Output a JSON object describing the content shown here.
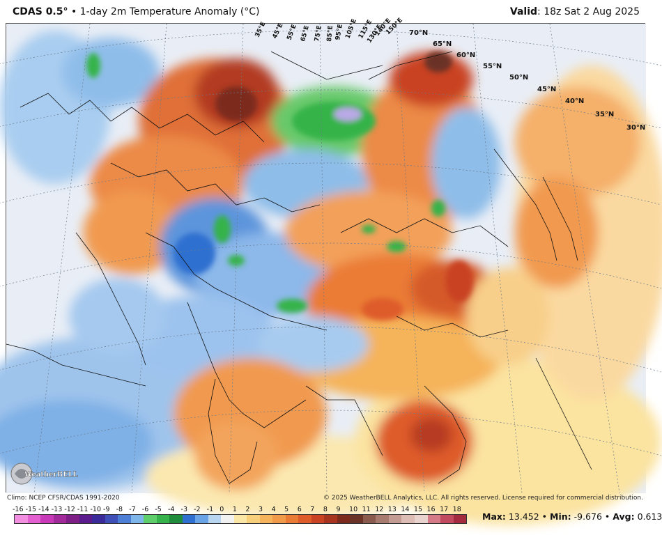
{
  "header": {
    "model": "CDAS 0.5°",
    "bullet": "•",
    "product": "1-day 2m Temperature Anomaly (°C)",
    "valid_label": "Valid",
    "valid_time": "18z Sat 2 Aug 2025"
  },
  "map": {
    "lat_labels": [
      "70°N",
      "65°N",
      "60°N",
      "55°N",
      "50°N",
      "45°N",
      "40°N",
      "35°N",
      "30°N"
    ],
    "lon_labels": [
      "35°E",
      "45°E",
      "55°E",
      "65°E",
      "75°E",
      "85°E",
      "95°E",
      "105°E",
      "115°E",
      "130°E",
      "140°E",
      "150°E"
    ],
    "logo_text": "WeatherBELL"
  },
  "footer": {
    "climo": "Climo: NCEP CFSR/CDAS 1991-2020",
    "copyright": "© 2025 WeatherBELL Analytics, LLC. All rights reserved. License required for commercial distribution."
  },
  "colorbar": {
    "labels": [
      "-16",
      "-15",
      "-14",
      "-13",
      "-12",
      "-11",
      "-10",
      "-9",
      "-8",
      "-7",
      "-6",
      "-5",
      "-4",
      "-3",
      "-2",
      "-1",
      "0",
      "1",
      "2",
      "3",
      "4",
      "5",
      "6",
      "7",
      "8",
      "9",
      "10",
      "11",
      "12",
      "13",
      "14",
      "15",
      "16",
      "17",
      "18"
    ],
    "colors": [
      "#f28fe0",
      "#e45fcf",
      "#c83ab8",
      "#a22a9a",
      "#7d1f86",
      "#5b1b8c",
      "#3b2a9a",
      "#3f4fb8",
      "#4d7fd6",
      "#7fb6ea",
      "#5fcf6b",
      "#36b34a",
      "#1e8c3a",
      "#2f6fd0",
      "#6aa3e6",
      "#b8d6f2",
      "#f2f2f2",
      "#fbe7a6",
      "#f8cf7a",
      "#f5b35a",
      "#f19a47",
      "#ea7b35",
      "#de5b2a",
      "#c94323",
      "#a7341f",
      "#7b2a1c",
      "#6b3326",
      "#8a5a4e",
      "#a77b70",
      "#c49c93",
      "#ddbcb5",
      "#e9d3cf",
      "#d47b87",
      "#c14a5e",
      "#a32a3f"
    ]
  },
  "stats": {
    "max_label": "Max:",
    "max_value": "13.452",
    "min_label": "Min:",
    "min_value": "-9.676",
    "avg_label": "Avg:",
    "avg_value": "0.613",
    "sep": "•"
  }
}
